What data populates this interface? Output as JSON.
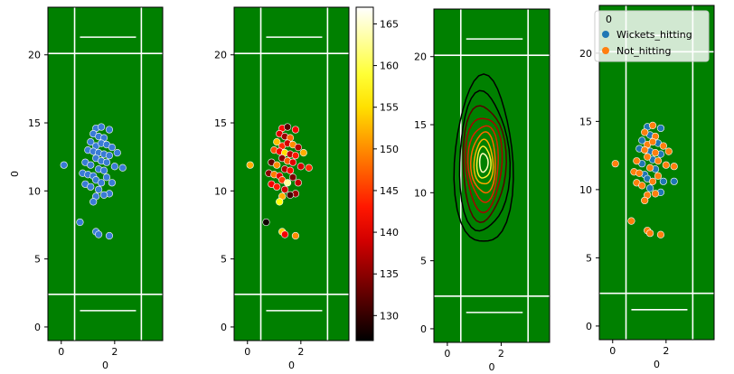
{
  "chart_data": [
    {
      "type": "scatter",
      "title": "",
      "xlabel": "0",
      "ylabel": "0",
      "xticks": [
        "0",
        "2"
      ],
      "yticks": [
        "0",
        "5",
        "10",
        "15",
        "20"
      ],
      "xlim": [
        -0.5,
        3.8
      ],
      "ylim": [
        -1,
        23.5
      ],
      "background": "#008000",
      "marker_color": "#3a7bd5",
      "points": [
        [
          0.1,
          11.9
        ],
        [
          1.3,
          14.6
        ],
        [
          1.5,
          14.7
        ],
        [
          1.8,
          14.5
        ],
        [
          1.2,
          14.2
        ],
        [
          1.4,
          14.0
        ],
        [
          1.6,
          13.9
        ],
        [
          1.1,
          13.6
        ],
        [
          1.3,
          13.3
        ],
        [
          1.5,
          13.5
        ],
        [
          1.7,
          13.4
        ],
        [
          1.9,
          13.2
        ],
        [
          1.0,
          13.0
        ],
        [
          1.2,
          12.9
        ],
        [
          1.4,
          12.8
        ],
        [
          1.6,
          12.7
        ],
        [
          1.8,
          12.6
        ],
        [
          2.1,
          12.8
        ],
        [
          1.3,
          12.4
        ],
        [
          1.5,
          12.2
        ],
        [
          1.7,
          12.1
        ],
        [
          0.9,
          12.1
        ],
        [
          1.1,
          11.9
        ],
        [
          2.0,
          11.8
        ],
        [
          2.3,
          11.7
        ],
        [
          1.4,
          11.6
        ],
        [
          1.6,
          11.5
        ],
        [
          0.8,
          11.3
        ],
        [
          1.0,
          11.2
        ],
        [
          1.2,
          11.1
        ],
        [
          1.7,
          11.0
        ],
        [
          1.3,
          10.8
        ],
        [
          1.5,
          10.6
        ],
        [
          0.9,
          10.5
        ],
        [
          1.9,
          10.6
        ],
        [
          1.1,
          10.3
        ],
        [
          1.4,
          10.1
        ],
        [
          1.8,
          9.8
        ],
        [
          1.3,
          9.6
        ],
        [
          1.6,
          9.7
        ],
        [
          1.2,
          9.2
        ],
        [
          0.7,
          7.7
        ],
        [
          1.3,
          7.0
        ],
        [
          1.4,
          6.8
        ],
        [
          1.8,
          6.7
        ]
      ]
    },
    {
      "type": "scatter",
      "title": "",
      "xlabel": "0",
      "ylabel": "",
      "xticks": [
        "0",
        "2"
      ],
      "yticks": [
        "0",
        "5",
        "10",
        "15",
        "20"
      ],
      "xlim": [
        -0.5,
        3.8
      ],
      "ylim": [
        -1,
        23.5
      ],
      "background": "#008000",
      "colormap": "hot",
      "colorbar": {
        "min": 127,
        "max": 167,
        "ticks": [
          "130",
          "135",
          "140",
          "145",
          "150",
          "155",
          "160",
          "165"
        ]
      },
      "points": [
        [
          0.1,
          11.9,
          152
        ],
        [
          1.3,
          14.6,
          142
        ],
        [
          1.5,
          14.7,
          132
        ],
        [
          1.8,
          14.5,
          141
        ],
        [
          1.2,
          14.2,
          140
        ],
        [
          1.4,
          14.0,
          136
        ],
        [
          1.6,
          13.9,
          148
        ],
        [
          1.1,
          13.6,
          153
        ],
        [
          1.3,
          13.3,
          144
        ],
        [
          1.5,
          13.5,
          139
        ],
        [
          1.7,
          13.4,
          150
        ],
        [
          1.9,
          13.2,
          137
        ],
        [
          1.0,
          13.0,
          146
        ],
        [
          1.2,
          12.9,
          141
        ],
        [
          1.4,
          12.8,
          155
        ],
        [
          1.6,
          12.7,
          138
        ],
        [
          1.8,
          12.6,
          143
        ],
        [
          2.1,
          12.8,
          152
        ],
        [
          1.3,
          12.4,
          135
        ],
        [
          1.5,
          12.2,
          147
        ],
        [
          1.7,
          12.1,
          140
        ],
        [
          0.9,
          12.1,
          133
        ],
        [
          1.1,
          11.9,
          150
        ],
        [
          2.0,
          11.8,
          139
        ],
        [
          2.3,
          11.7,
          144
        ],
        [
          1.4,
          11.6,
          137
        ],
        [
          1.6,
          11.5,
          142
        ],
        [
          0.8,
          11.3,
          135
        ],
        [
          1.0,
          11.2,
          149
        ],
        [
          1.2,
          11.1,
          140
        ],
        [
          1.7,
          11.0,
          134
        ],
        [
          1.3,
          10.8,
          145
        ],
        [
          1.5,
          10.6,
          163
        ],
        [
          0.9,
          10.5,
          141
        ],
        [
          1.9,
          10.6,
          138
        ],
        [
          1.1,
          10.3,
          143
        ],
        [
          1.4,
          10.1,
          139
        ],
        [
          1.8,
          9.8,
          136
        ],
        [
          1.3,
          9.6,
          152
        ],
        [
          1.6,
          9.7,
          131
        ],
        [
          1.2,
          9.2,
          157
        ],
        [
          0.7,
          7.7,
          128
        ],
        [
          1.3,
          7.0,
          154
        ],
        [
          1.4,
          6.8,
          141
        ],
        [
          1.8,
          6.7,
          150
        ]
      ]
    },
    {
      "type": "contour",
      "title": "",
      "xlabel": "0",
      "ylabel": "",
      "xticks": [
        "0",
        "2"
      ],
      "yticks": [
        "0",
        "5",
        "10",
        "15",
        "20"
      ],
      "xlim": [
        -0.5,
        3.8
      ],
      "ylim": [
        -1,
        23.5
      ],
      "background": "#008000",
      "kde_center": [
        1.35,
        12.2
      ],
      "levels": [
        {
          "rx": 1.05,
          "ry": 6.4,
          "color": "#000000"
        },
        {
          "rx": 0.9,
          "ry": 5.3,
          "color": "#000000"
        },
        {
          "rx": 0.77,
          "ry": 4.4,
          "color": "#550000"
        },
        {
          "rx": 0.65,
          "ry": 3.6,
          "color": "#a60000"
        },
        {
          "rx": 0.54,
          "ry": 2.9,
          "color": "#dd2200"
        },
        {
          "rx": 0.44,
          "ry": 2.3,
          "color": "#ff6600"
        },
        {
          "rx": 0.34,
          "ry": 1.7,
          "color": "#ffaa00"
        },
        {
          "rx": 0.25,
          "ry": 1.2,
          "color": "#ffee33"
        },
        {
          "rx": 0.15,
          "ry": 0.7,
          "color": "#ffffbb"
        }
      ]
    },
    {
      "type": "scatter",
      "title": "",
      "xlabel": "0",
      "ylabel": "",
      "xticks": [
        "0",
        "2"
      ],
      "yticks": [
        "0",
        "5",
        "10",
        "15",
        "20"
      ],
      "xlim": [
        -0.5,
        3.8
      ],
      "ylim": [
        -1,
        23.5
      ],
      "background": "#008000",
      "legend": {
        "title": "0",
        "position": "upper-right",
        "entries": [
          {
            "label": "Wickets_hitting",
            "color": "#1f77b4"
          },
          {
            "label": "Not_hitting",
            "color": "#ff7f0e"
          }
        ]
      },
      "series": [
        {
          "name": "Wickets_hitting",
          "color": "#1f77b4",
          "points": [
            [
              1.3,
              14.6
            ],
            [
              1.8,
              14.5
            ],
            [
              1.4,
              14.0
            ],
            [
              1.1,
              13.6
            ],
            [
              1.7,
              13.4
            ],
            [
              1.0,
              13.0
            ],
            [
              1.4,
              12.8
            ],
            [
              1.8,
              12.6
            ],
            [
              1.5,
              12.2
            ],
            [
              1.1,
              11.9
            ],
            [
              1.6,
              11.5
            ],
            [
              1.2,
              11.1
            ],
            [
              1.3,
              10.8
            ],
            [
              1.9,
              10.6
            ],
            [
              1.4,
              10.1
            ],
            [
              1.8,
              9.8
            ],
            [
              2.3,
              10.6
            ]
          ]
        },
        {
          "name": "Not_hitting",
          "color": "#ff7f0e",
          "points": [
            [
              0.1,
              11.9
            ],
            [
              1.5,
              14.7
            ],
            [
              1.2,
              14.2
            ],
            [
              1.6,
              13.9
            ],
            [
              1.3,
              13.3
            ],
            [
              1.5,
              13.5
            ],
            [
              1.9,
              13.2
            ],
            [
              1.2,
              12.9
            ],
            [
              1.6,
              12.7
            ],
            [
              2.1,
              12.8
            ],
            [
              1.3,
              12.4
            ],
            [
              1.7,
              12.1
            ],
            [
              0.9,
              12.1
            ],
            [
              2.0,
              11.8
            ],
            [
              2.3,
              11.7
            ],
            [
              1.4,
              11.6
            ],
            [
              0.8,
              11.3
            ],
            [
              1.0,
              11.2
            ],
            [
              1.7,
              11.0
            ],
            [
              1.5,
              10.6
            ],
            [
              0.9,
              10.5
            ],
            [
              1.1,
              10.3
            ],
            [
              1.3,
              9.6
            ],
            [
              1.6,
              9.7
            ],
            [
              1.2,
              9.2
            ],
            [
              0.7,
              7.7
            ],
            [
              1.3,
              7.0
            ],
            [
              1.4,
              6.8
            ],
            [
              1.8,
              6.7
            ]
          ]
        }
      ]
    }
  ]
}
